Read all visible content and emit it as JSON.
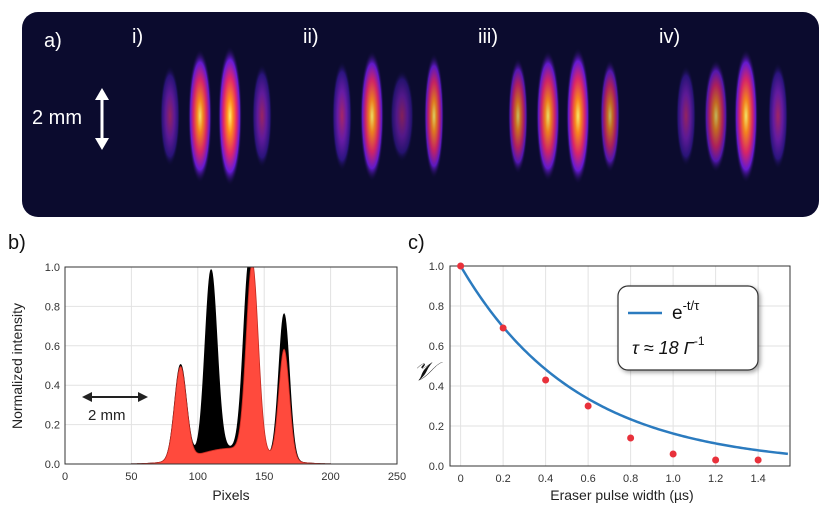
{
  "panel_a": {
    "label": "a)",
    "scale_label": "2 mm",
    "frames": [
      {
        "label": "i)",
        "lobe_intensity": [
          0.35,
          0.9,
          1.0,
          0.4
        ]
      },
      {
        "label": "ii)",
        "lobe_intensity": [
          0.5,
          0.85,
          0.2,
          0.75
        ]
      },
      {
        "label": "iii)",
        "lobe_intensity": [
          0.6,
          0.85,
          0.95,
          0.55
        ]
      },
      {
        "label": "iv)",
        "lobe_intensity": [
          0.35,
          0.55,
          0.9,
          0.45
        ]
      }
    ]
  },
  "panel_b": {
    "label": "b)",
    "scale_label": "2 mm"
  },
  "panel_c": {
    "label": "c)"
  },
  "colors": {
    "black_profile": "#000000",
    "red_profile": "#ff4a3d",
    "fit_line": "#2b7bbf",
    "points": "#e8313b"
  },
  "chart_data": [
    {
      "type": "area",
      "xlabel": "Pixels",
      "ylabel": "Normalized intensity",
      "xlim": [
        0,
        250
      ],
      "ylim": [
        0,
        1.0
      ],
      "xticks": [
        "0",
        "50",
        "100",
        "150",
        "200",
        "250"
      ],
      "yticks": [
        "0.0",
        "0.2",
        "0.4",
        "0.6",
        "0.8",
        "1.0"
      ],
      "series": [
        {
          "name": "profile-black",
          "peaks": [
            {
              "x": 87,
              "amp": 0.48,
              "w": 4.5
            },
            {
              "x": 110,
              "amp": 0.92,
              "w": 4.5
            },
            {
              "x": 139,
              "amp": 0.98,
              "w": 4.5
            },
            {
              "x": 165,
              "amp": 0.74,
              "w": 4.0
            }
          ],
          "baseline": {
            "x": 125,
            "amp": 0.08,
            "w": 25
          }
        },
        {
          "name": "profile-red",
          "peaks": [
            {
              "x": 87,
              "amp": 0.47,
              "w": 4.5
            },
            {
              "x": 141,
              "amp": 0.96,
              "w": 4.5
            },
            {
              "x": 165,
              "amp": 0.56,
              "w": 4.0
            }
          ],
          "baseline": {
            "x": 125,
            "amp": 0.08,
            "w": 25
          }
        }
      ]
    },
    {
      "type": "scatter",
      "xlabel": "Eraser pulse width (µs)",
      "ylabel": "𝒱",
      "xlim": [
        -0.05,
        1.55
      ],
      "ylim": [
        0,
        1.0
      ],
      "xticks": [
        "0",
        "0.2",
        "0.4",
        "0.6",
        "0.8",
        "1.0",
        "1.2",
        "1.4"
      ],
      "yticks": [
        "0.0",
        "0.2",
        "0.4",
        "0.6",
        "0.8",
        "1.0"
      ],
      "points": {
        "x": [
          0.0,
          0.2,
          0.4,
          0.6,
          0.8,
          1.0,
          1.2,
          1.4
        ],
        "y": [
          1.0,
          0.69,
          0.43,
          0.3,
          0.14,
          0.06,
          0.03,
          0.03
        ]
      },
      "fit": {
        "tau": 0.55
      },
      "legend": {
        "fit_label": "e",
        "fit_exponent": "-t/τ",
        "tau_text": "τ ≈ 18 Γ",
        "tau_exponent": "-1"
      }
    }
  ]
}
